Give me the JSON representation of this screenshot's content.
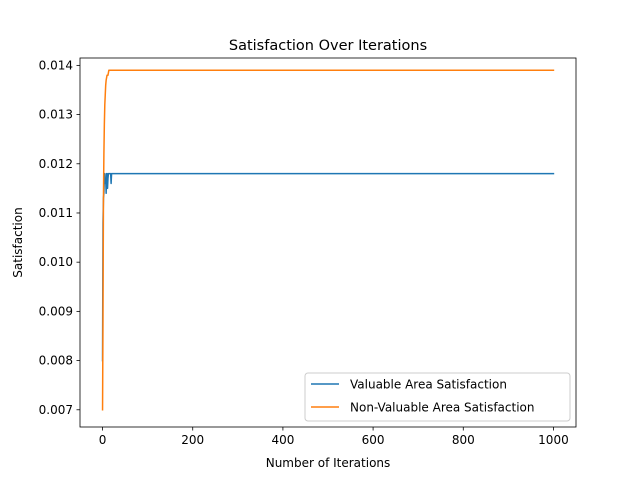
{
  "chart_data": {
    "type": "line",
    "title": "Satisfaction Over Iterations",
    "xlabel": "Number of Iterations",
    "ylabel": "Satisfaction",
    "xlim": [
      -50,
      1050
    ],
    "ylim": [
      0.00665,
      0.01415
    ],
    "xticks": [
      0,
      200,
      400,
      600,
      800,
      1000
    ],
    "yticks": [
      0.007,
      0.008,
      0.009,
      0.01,
      0.011,
      0.012,
      0.013,
      0.014
    ],
    "ytick_labels": [
      "0.007",
      "0.008",
      "0.009",
      "0.010",
      "0.011",
      "0.012",
      "0.013",
      "0.014"
    ],
    "grid": false,
    "legend_position": "lower-right",
    "series": [
      {
        "name": "Valuable Area Satisfaction",
        "color": "#1f77b4",
        "x": [
          0,
          1,
          2,
          3,
          4,
          5,
          6,
          7,
          8,
          9,
          10,
          11,
          12,
          13,
          14,
          15,
          16,
          17,
          18,
          19,
          20,
          21,
          22,
          30,
          50,
          100,
          1000
        ],
        "y": [
          0.008,
          0.0108,
          0.0113,
          0.0114,
          0.0117,
          0.0118,
          0.0116,
          0.0117,
          0.0114,
          0.0118,
          0.0118,
          0.0115,
          0.0117,
          0.0118,
          0.0118,
          0.0118,
          0.0118,
          0.0118,
          0.0118,
          0.0116,
          0.0118,
          0.0118,
          0.0118,
          0.0118,
          0.0118,
          0.0118,
          0.0118
        ]
      },
      {
        "name": "Non-Valuable Area Satisfaction",
        "color": "#ff7f0e",
        "x": [
          0,
          1,
          2,
          3,
          4,
          5,
          6,
          7,
          8,
          10,
          12,
          14,
          16,
          18,
          20,
          25,
          30,
          35,
          40,
          60,
          100,
          1000
        ],
        "y": [
          0.007,
          0.0089,
          0.0113,
          0.0122,
          0.0128,
          0.0132,
          0.0134,
          0.0136,
          0.0137,
          0.0138,
          0.0138,
          0.0139,
          0.0139,
          0.0139,
          0.0139,
          0.0139,
          0.0139,
          0.0139,
          0.0139,
          0.0139,
          0.0139,
          0.0139
        ]
      }
    ]
  }
}
